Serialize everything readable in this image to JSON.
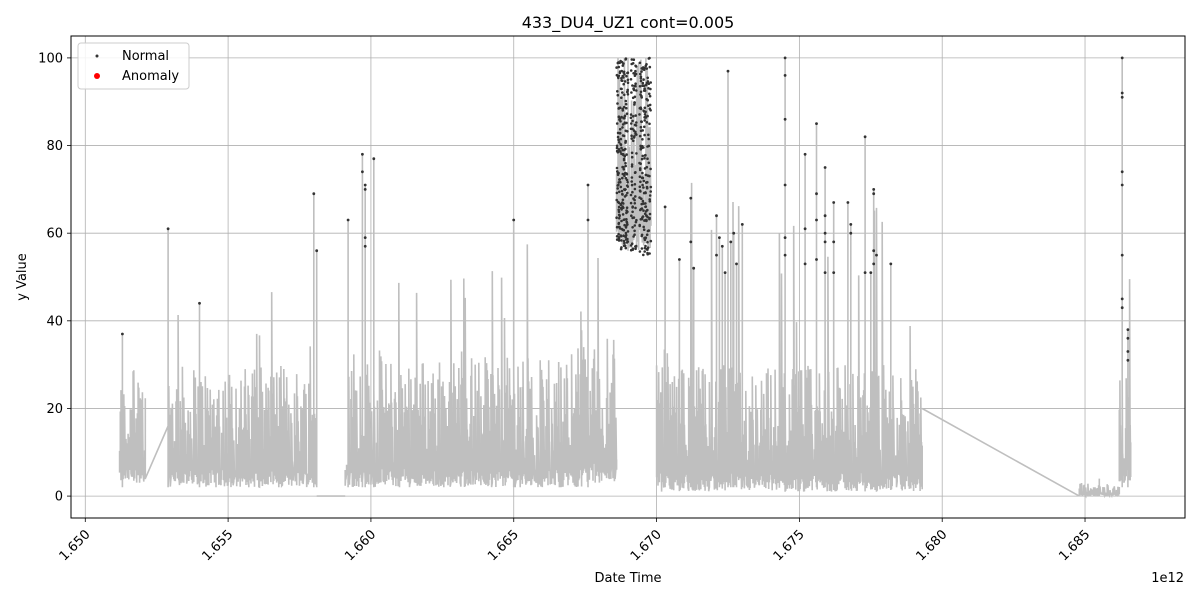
{
  "chart_data": {
    "type": "line",
    "title": "433_DU4_UZ1 cont=0.005",
    "xlabel": "Date Time",
    "ylabel": "y Value",
    "x_offset_label": "1e12",
    "xlim": [
      1.6495,
      1.6885
    ],
    "ylim": [
      -5,
      105
    ],
    "x_ticks": [
      1.65,
      1.655,
      1.66,
      1.665,
      1.67,
      1.675,
      1.68,
      1.685
    ],
    "x_tick_labels": [
      "1.650",
      "1.655",
      "1.660",
      "1.665",
      "1.670",
      "1.675",
      "1.680",
      "1.685"
    ],
    "y_ticks": [
      0,
      20,
      40,
      60,
      80,
      100
    ],
    "y_tick_labels": [
      "0",
      "20",
      "40",
      "60",
      "80",
      "100"
    ],
    "grid": true,
    "legend_position": "top-left",
    "legend": [
      {
        "label": "Normal",
        "color": "#333333",
        "marker": "small-dot"
      },
      {
        "label": "Anomaly",
        "color": "#ff0000",
        "marker": "dot"
      }
    ],
    "line_color": "#bfbfbf",
    "segments": [
      {
        "x_start": 1.6512,
        "x_end": 1.6521,
        "low": 3,
        "high": 27,
        "peak_x": 1.6513,
        "peak": 37
      },
      {
        "x_start": 1.6529,
        "x_end": 1.6581,
        "low": 2,
        "high": 30,
        "peak_x": 1.6529,
        "peak": 61
      },
      {
        "x_start": 1.6591,
        "x_end": 1.6674,
        "low": 2,
        "high": 32,
        "peak_x": 1.6597,
        "peak": 78
      },
      {
        "x_start": 1.667,
        "x_end": 1.6686,
        "low": 3,
        "high": 36,
        "peak_x": 1.6676,
        "peak": 71
      },
      {
        "x_start": 1.6686,
        "x_end": 1.6698,
        "low": 56,
        "high": 100,
        "peak_x": 1.669,
        "peak": 100
      },
      {
        "x_start": 1.67,
        "x_end": 1.6793,
        "low": 1,
        "high": 30,
        "peak_x": 1.6745,
        "peak": 100
      },
      {
        "x_start": 1.6848,
        "x_end": 1.6862,
        "low": 0,
        "high": 3,
        "peak_x": 1.6855,
        "peak": 4
      },
      {
        "x_start": 1.6862,
        "x_end": 1.6866,
        "low": 3,
        "high": 27,
        "peak_x": 1.6863,
        "peak": 100
      }
    ],
    "connectors": [
      {
        "x": [
          1.6521,
          1.6529
        ],
        "y": [
          4,
          16
        ]
      },
      {
        "x": [
          1.6581,
          1.6591
        ],
        "y": [
          0,
          0
        ]
      },
      {
        "x": [
          1.6793,
          1.6848
        ],
        "y": [
          20,
          0
        ]
      }
    ],
    "normal_points": [
      {
        "x": 1.6513,
        "y": 37
      },
      {
        "x": 1.6529,
        "y": 61
      },
      {
        "x": 1.654,
        "y": 44
      },
      {
        "x": 1.658,
        "y": 69
      },
      {
        "x": 1.6581,
        "y": 56
      },
      {
        "x": 1.6592,
        "y": 63
      },
      {
        "x": 1.6597,
        "y": 78
      },
      {
        "x": 1.6597,
        "y": 74
      },
      {
        "x": 1.6598,
        "y": 71
      },
      {
        "x": 1.6598,
        "y": 70
      },
      {
        "x": 1.6598,
        "y": 59
      },
      {
        "x": 1.6598,
        "y": 57
      },
      {
        "x": 1.6601,
        "y": 77
      },
      {
        "x": 1.665,
        "y": 63
      },
      {
        "x": 1.6676,
        "y": 71
      },
      {
        "x": 1.6676,
        "y": 63
      },
      {
        "x": 1.6703,
        "y": 66
      },
      {
        "x": 1.6708,
        "y": 54
      },
      {
        "x": 1.6712,
        "y": 68
      },
      {
        "x": 1.6712,
        "y": 58
      },
      {
        "x": 1.6713,
        "y": 52
      },
      {
        "x": 1.6721,
        "y": 64
      },
      {
        "x": 1.6721,
        "y": 55
      },
      {
        "x": 1.6722,
        "y": 59
      },
      {
        "x": 1.6723,
        "y": 57
      },
      {
        "x": 1.6724,
        "y": 51
      },
      {
        "x": 1.6725,
        "y": 97
      },
      {
        "x": 1.6726,
        "y": 58
      },
      {
        "x": 1.6727,
        "y": 60
      },
      {
        "x": 1.6728,
        "y": 53
      },
      {
        "x": 1.673,
        "y": 62
      },
      {
        "x": 1.6745,
        "y": 100
      },
      {
        "x": 1.6745,
        "y": 96
      },
      {
        "x": 1.6745,
        "y": 86
      },
      {
        "x": 1.6745,
        "y": 71
      },
      {
        "x": 1.6745,
        "y": 59
      },
      {
        "x": 1.6745,
        "y": 55
      },
      {
        "x": 1.6752,
        "y": 78
      },
      {
        "x": 1.6752,
        "y": 61
      },
      {
        "x": 1.6752,
        "y": 53
      },
      {
        "x": 1.6756,
        "y": 85
      },
      {
        "x": 1.6756,
        "y": 69
      },
      {
        "x": 1.6756,
        "y": 63
      },
      {
        "x": 1.6756,
        "y": 54
      },
      {
        "x": 1.6759,
        "y": 75
      },
      {
        "x": 1.6759,
        "y": 64
      },
      {
        "x": 1.6759,
        "y": 60
      },
      {
        "x": 1.6759,
        "y": 58
      },
      {
        "x": 1.6759,
        "y": 51
      },
      {
        "x": 1.6762,
        "y": 67
      },
      {
        "x": 1.6762,
        "y": 58
      },
      {
        "x": 1.6762,
        "y": 51
      },
      {
        "x": 1.6767,
        "y": 67
      },
      {
        "x": 1.6768,
        "y": 62
      },
      {
        "x": 1.6768,
        "y": 60
      },
      {
        "x": 1.6773,
        "y": 82
      },
      {
        "x": 1.6773,
        "y": 51
      },
      {
        "x": 1.6775,
        "y": 51
      },
      {
        "x": 1.6776,
        "y": 70
      },
      {
        "x": 1.6776,
        "y": 69
      },
      {
        "x": 1.6776,
        "y": 56
      },
      {
        "x": 1.6776,
        "y": 53
      },
      {
        "x": 1.6777,
        "y": 55
      },
      {
        "x": 1.6782,
        "y": 53
      },
      {
        "x": 1.6863,
        "y": 100
      },
      {
        "x": 1.6863,
        "y": 92
      },
      {
        "x": 1.6863,
        "y": 91
      },
      {
        "x": 1.6863,
        "y": 74
      },
      {
        "x": 1.6863,
        "y": 71
      },
      {
        "x": 1.6863,
        "y": 55
      },
      {
        "x": 1.6863,
        "y": 45
      },
      {
        "x": 1.6863,
        "y": 43
      },
      {
        "x": 1.6865,
        "y": 38
      },
      {
        "x": 1.6865,
        "y": 36
      },
      {
        "x": 1.6865,
        "y": 33
      },
      {
        "x": 1.6865,
        "y": 31
      }
    ],
    "normal_point_clusters": [
      {
        "x_start": 1.6686,
        "x_end": 1.669,
        "y_min": 56,
        "y_max": 100,
        "count": 220
      },
      {
        "x_start": 1.6691,
        "x_end": 1.6693,
        "y_min": 56,
        "y_max": 100,
        "count": 90
      },
      {
        "x_start": 1.6694,
        "x_end": 1.6698,
        "y_min": 55,
        "y_max": 100,
        "count": 180
      }
    ],
    "anomaly_points": []
  }
}
